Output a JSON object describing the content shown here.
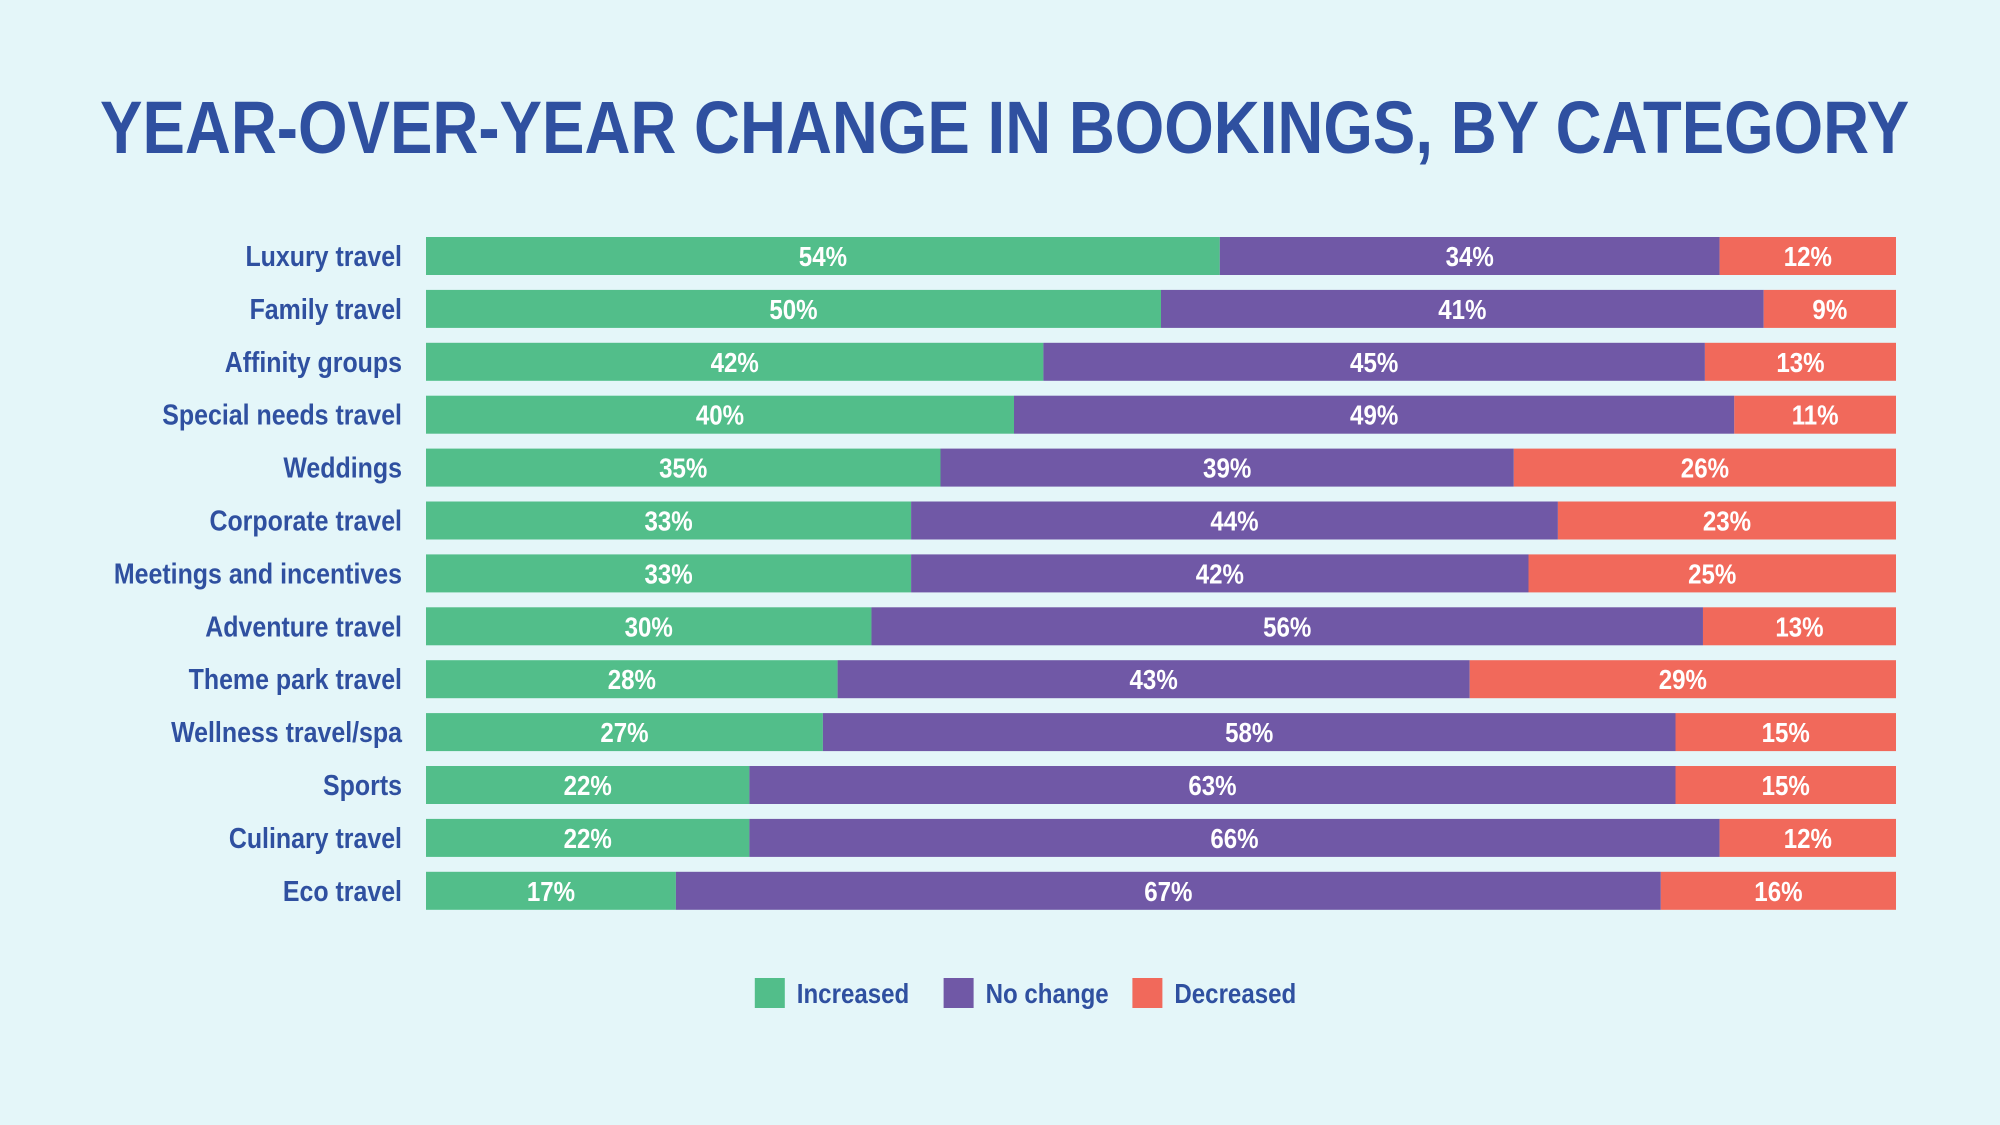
{
  "chart_data": {
    "type": "bar",
    "orientation": "horizontal",
    "stacked": true,
    "title": "YEAR-OVER-YEAR CHANGE IN BOOKINGS, BY CATEGORY",
    "categories": [
      "Luxury travel",
      "Family travel",
      "Affinity groups",
      "Special needs travel",
      "Weddings",
      "Corporate travel",
      "Meetings and incentives",
      "Adventure travel",
      "Theme park travel",
      "Wellness travel/spa",
      "Sports",
      "Culinary travel",
      "Eco travel"
    ],
    "series": [
      {
        "name": "Increased",
        "color": "#52be8a",
        "values": [
          54,
          50,
          42,
          40,
          35,
          33,
          33,
          30,
          28,
          27,
          22,
          22,
          17
        ]
      },
      {
        "name": "No change",
        "color": "#7058a6",
        "values": [
          34,
          41,
          45,
          49,
          39,
          44,
          42,
          56,
          43,
          58,
          63,
          66,
          67
        ]
      },
      {
        "name": "Decreased",
        "color": "#f1695b",
        "values": [
          12,
          9,
          13,
          11,
          26,
          23,
          25,
          13,
          29,
          15,
          15,
          12,
          16
        ]
      }
    ],
    "value_suffix": "%",
    "legend_position": "bottom",
    "grid": false
  }
}
